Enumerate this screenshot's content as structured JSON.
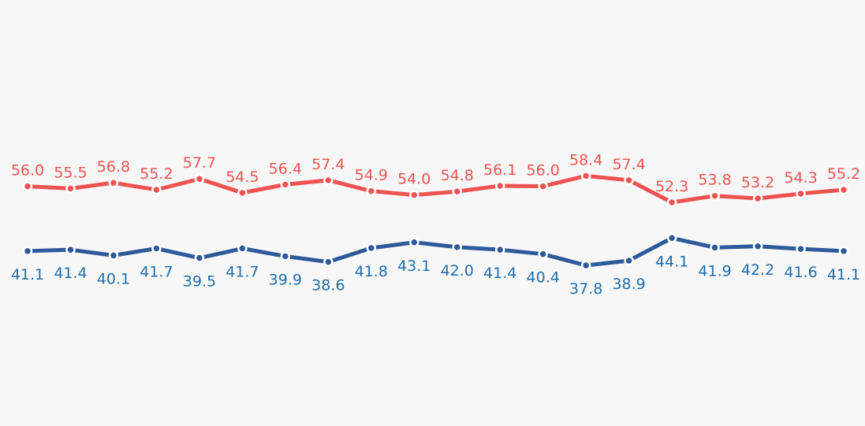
{
  "chart_data": {
    "type": "line",
    "title": "",
    "xlabel": "",
    "ylabel": "",
    "ylim": [
      30,
      65
    ],
    "grid": false,
    "legend": "none",
    "colors": {
      "top": "#ef5350",
      "bottom": "#2c5a9a",
      "background": "#f7f7f7"
    },
    "series": [
      {
        "values": [
          56.0,
          55.5,
          56.8,
          55.2,
          57.7,
          54.5,
          56.4,
          57.4,
          54.9,
          54.0,
          54.8,
          56.1,
          56.0,
          58.4,
          57.4,
          52.3,
          53.8,
          53.2,
          54.3,
          55.2
        ],
        "labels": [
          "56.0",
          "55.5",
          "56.8",
          "55.2",
          "57.7",
          "54.5",
          "56.4",
          "57.4",
          "54.9",
          "54.0",
          "54.8",
          "56.1",
          "56.0",
          "58.4",
          "57.4",
          "52.3",
          "53.8",
          "53.2",
          "54.3",
          "55.2"
        ],
        "color": "#ef5350"
      },
      {
        "values": [
          41.1,
          41.4,
          40.1,
          41.7,
          39.5,
          41.7,
          39.9,
          38.6,
          41.8,
          43.1,
          42.0,
          41.4,
          40.4,
          37.8,
          38.9,
          44.1,
          41.9,
          42.2,
          41.6,
          41.1
        ],
        "labels": [
          "41.1",
          "41.4",
          "40.1",
          "41.7",
          "39.5",
          "41.7",
          "39.9",
          "38.6",
          "41.8",
          "43.1",
          "42.0",
          "41.4",
          "40.4",
          "37.8",
          "38.9",
          "44.1",
          "41.9",
          "42.2",
          "41.6",
          "41.1"
        ],
        "color": "#2c5a9a"
      }
    ]
  }
}
